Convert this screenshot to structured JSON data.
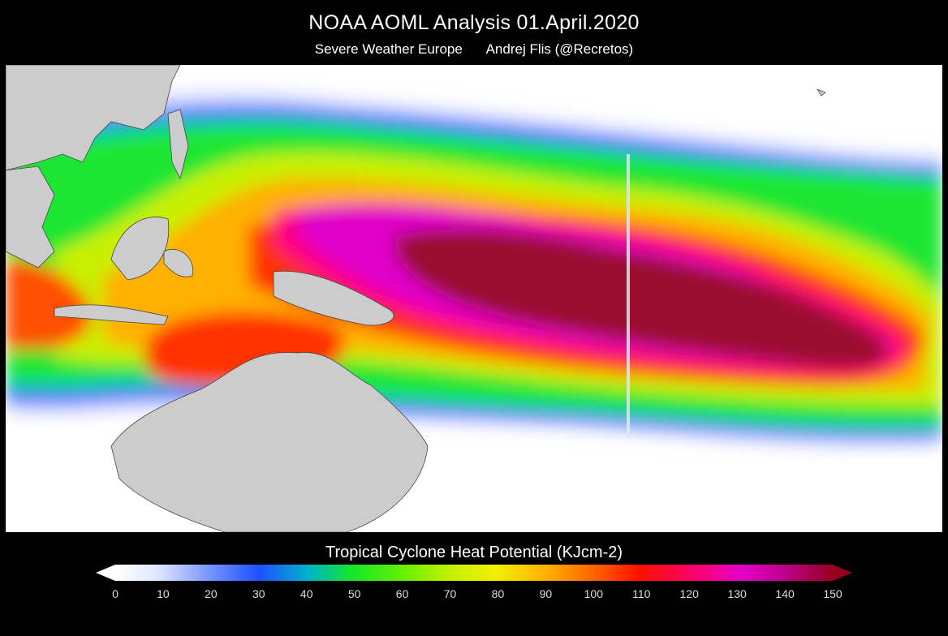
{
  "header": {
    "title": "NOAA AOML Analysis   01.April.2020",
    "subtitle_left": "Severe Weather Europe",
    "subtitle_right": "Andrej Flis (@Recretos)"
  },
  "legend": {
    "title": "Tropical Cyclone Heat Potential (KJcm-2)",
    "ticks": [
      "0",
      "10",
      "20",
      "30",
      "40",
      "50",
      "60",
      "70",
      "80",
      "90",
      "100",
      "110",
      "120",
      "130",
      "140",
      "150"
    ],
    "min": 0,
    "max": 150,
    "colors": [
      "#ffffff",
      "#c8d2ff",
      "#1e50ff",
      "#00b4c8",
      "#14e628",
      "#96f000",
      "#f0f000",
      "#ffa000",
      "#ff2800",
      "#ff007a",
      "#e600c8",
      "#96001e"
    ]
  },
  "map": {
    "colors": {
      "land": "#cccccc",
      "ocean_low": "#ffffff",
      "max_core": "#9b0a2e"
    }
  }
}
